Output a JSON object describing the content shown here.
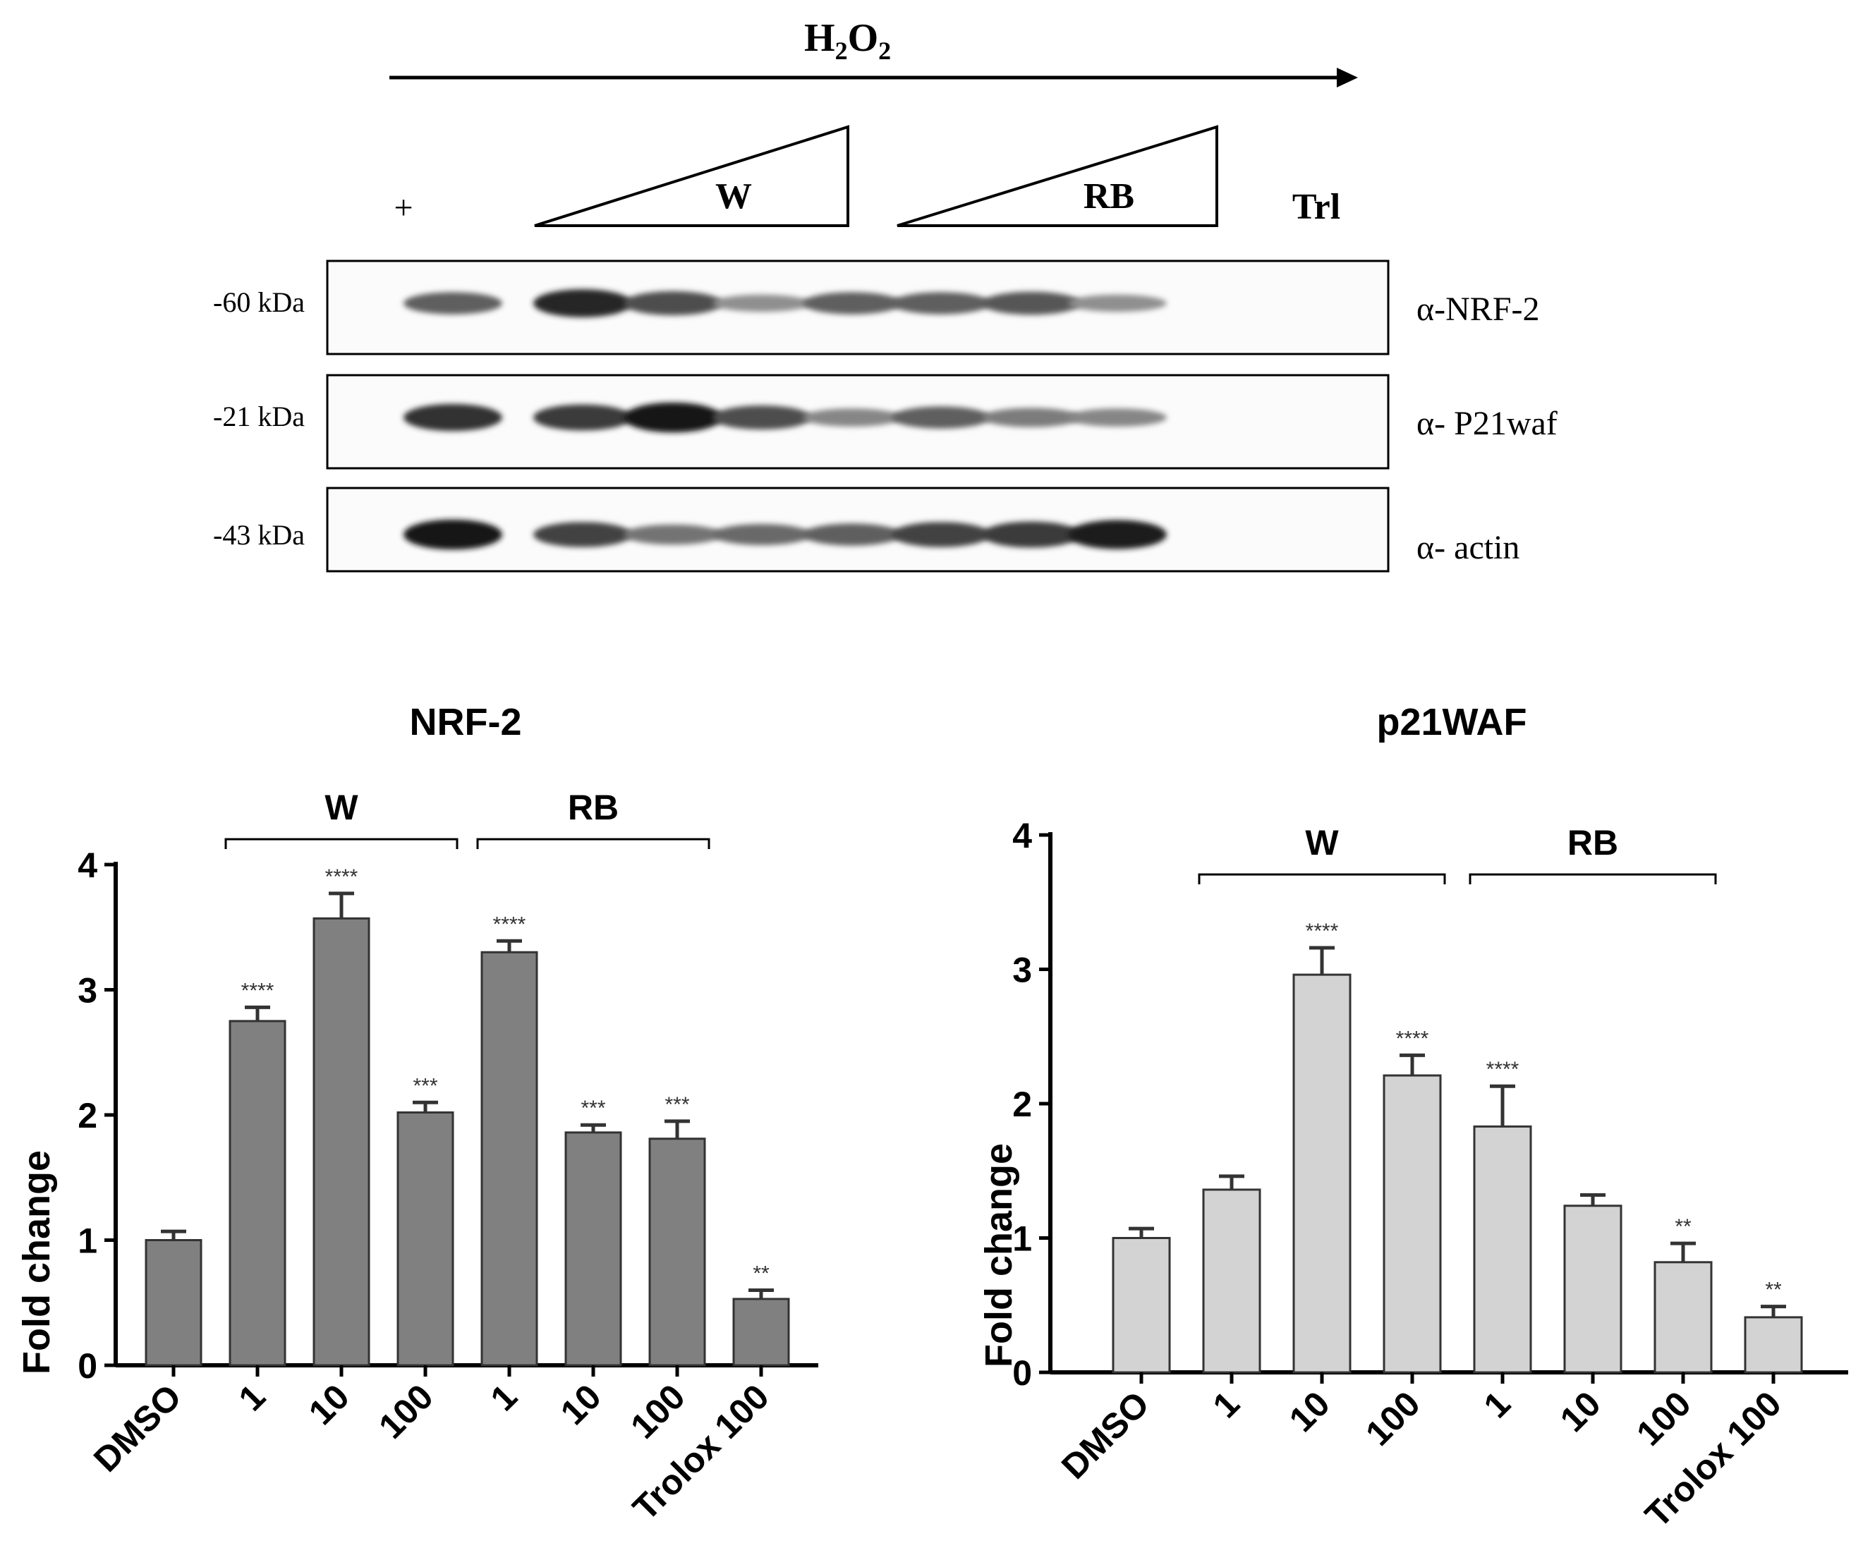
{
  "blot": {
    "treatment_label": "H",
    "treatment_sub1": "2",
    "treatment_mid": "O",
    "treatment_sub2": "2",
    "lane_plus": "+",
    "group_w": "W",
    "group_rb": "RB",
    "group_trl": "Trl",
    "rows": [
      {
        "mw": "-60 kDa",
        "antibody": "α-NRF-2",
        "intensities": [
          0.55,
          0.85,
          0.65,
          0.3,
          0.55,
          0.55,
          0.6,
          0.3
        ]
      },
      {
        "mw": "-21 kDa",
        "antibody": "α- P21waf",
        "intensities": [
          0.8,
          0.75,
          0.95,
          0.65,
          0.35,
          0.55,
          0.4,
          0.35
        ]
      },
      {
        "mw": "-43 kDa",
        "antibody": "α- actin",
        "intensities": [
          0.95,
          0.7,
          0.45,
          0.5,
          0.55,
          0.7,
          0.75,
          0.9
        ]
      }
    ]
  },
  "chart_data": [
    {
      "type": "bar",
      "title": "NRF-2",
      "ylabel": "Fold change",
      "xlabel": "",
      "ylim": [
        0,
        4
      ],
      "yticks": [
        "0",
        "1",
        "2",
        "3",
        "4"
      ],
      "categories": [
        "DMSO",
        "1",
        "10",
        "100",
        "1",
        "10",
        "100",
        "Trolox 100"
      ],
      "values": [
        1.0,
        2.75,
        3.57,
        2.02,
        3.3,
        1.86,
        1.81,
        0.53
      ],
      "errors": [
        0.07,
        0.11,
        0.2,
        0.08,
        0.09,
        0.06,
        0.14,
        0.07
      ],
      "significance": [
        "",
        "****",
        "****",
        "***",
        "****",
        "***",
        "***",
        "**"
      ],
      "groups": [
        {
          "label": "W",
          "from": 1,
          "to": 3
        },
        {
          "label": "RB",
          "from": 4,
          "to": 6
        }
      ],
      "bar_color": "#808080"
    },
    {
      "type": "bar",
      "title": "p21WAF",
      "ylabel": "Fold change",
      "xlabel": "",
      "ylim": [
        0,
        4
      ],
      "yticks": [
        "0",
        "1",
        "2",
        "3",
        "4"
      ],
      "categories": [
        "DMSO",
        "1",
        "10",
        "100",
        "1",
        "10",
        "100",
        "Trolox 100"
      ],
      "values": [
        1.0,
        1.36,
        2.96,
        2.21,
        1.83,
        1.24,
        0.82,
        0.41
      ],
      "errors": [
        0.07,
        0.1,
        0.2,
        0.15,
        0.3,
        0.08,
        0.14,
        0.08
      ],
      "significance": [
        "",
        "",
        "****",
        "****",
        "****",
        "",
        "**",
        "**"
      ],
      "groups": [
        {
          "label": "W",
          "from": 1,
          "to": 3
        },
        {
          "label": "RB",
          "from": 4,
          "to": 6
        }
      ],
      "bar_color": "#d3d3d3"
    }
  ]
}
